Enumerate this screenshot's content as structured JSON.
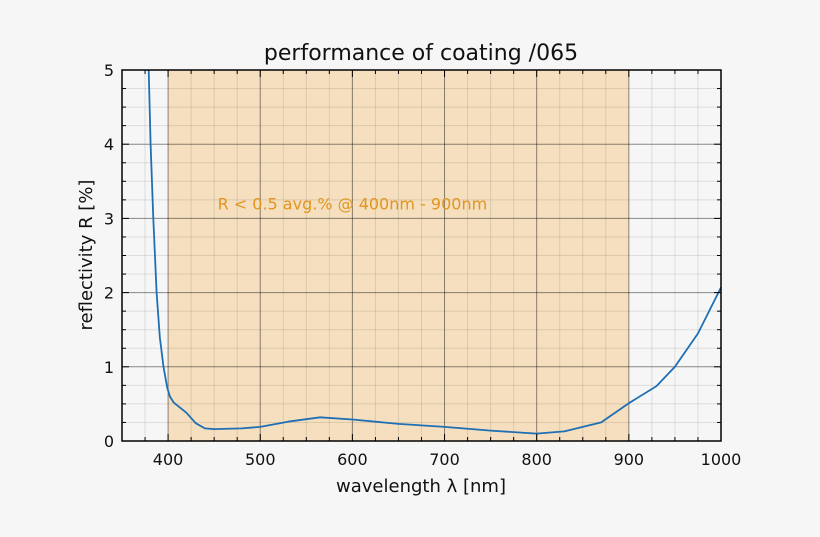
{
  "chart_data": {
    "type": "line",
    "title": "performance of coating /065",
    "xlabel": "wavelength λ [nm]",
    "ylabel": "reflectivity R [%]",
    "xlim": [
      350,
      1000
    ],
    "ylim": [
      0,
      5
    ],
    "xticks": [
      400,
      500,
      600,
      700,
      800,
      900,
      1000
    ],
    "yticks": [
      0,
      1,
      2,
      3,
      4,
      5
    ],
    "grid": {
      "major": true,
      "minor": true,
      "minor_x_step": 25,
      "minor_y_step": 0.25
    },
    "shaded_region": {
      "x": [
        400,
        900
      ],
      "color": "#f5dfbf"
    },
    "annotation": {
      "text": "R < 0.5 avg.% @ 400nm - 900nm",
      "x": 600,
      "y": 3.2,
      "color": "#e0961e"
    },
    "series": [
      {
        "color": "#1f6fb4",
        "x": [
          379,
          381,
          384,
          387.6,
          391,
          395,
          399,
          402,
          406,
          410,
          420,
          430,
          440,
          450,
          480,
          500,
          530,
          565,
          600,
          650,
          700,
          750,
          800,
          830,
          870,
          900,
          930,
          950,
          975,
          1000
        ],
        "y": [
          5.0,
          4.0,
          3.0,
          2.0,
          1.4,
          1.0,
          0.72,
          0.6,
          0.52,
          0.48,
          0.38,
          0.24,
          0.17,
          0.16,
          0.17,
          0.19,
          0.26,
          0.32,
          0.29,
          0.23,
          0.19,
          0.14,
          0.1,
          0.13,
          0.25,
          0.51,
          0.74,
          1.0,
          1.45,
          2.07
        ]
      }
    ]
  }
}
